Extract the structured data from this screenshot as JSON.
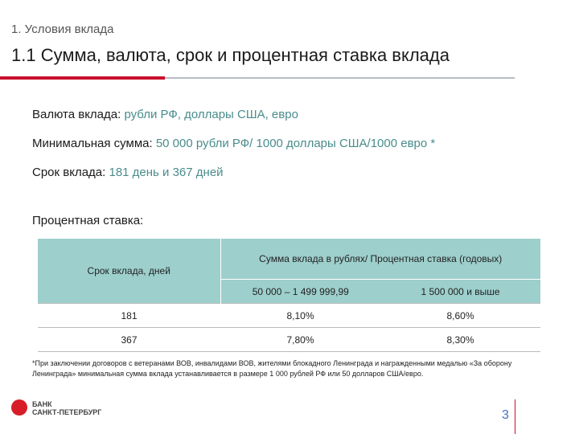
{
  "header": {
    "section": "1. Условия вклада",
    "title": "1.1 Сумма, валюта, срок и процентная ставка вклада"
  },
  "conditions": {
    "currency": {
      "label": "Валюта вклада:",
      "value": "рубли РФ, доллары США, евро"
    },
    "min_sum": {
      "label": "Минимальная сумма:",
      "value": "50 000 рубли РФ/ 1000 доллары США/1000 евро *"
    },
    "term": {
      "label": "Срок вклада:",
      "value": "181 день и 367 дней"
    },
    "rate_heading": "Процентная ставка:"
  },
  "table": {
    "col_term": "Срок вклада, дней",
    "col_group": "Сумма вклада в рублях/ Процентная ставка (годовых)",
    "sub_cols": [
      "50 000 – 1 499 999,99",
      "1 500 000 и выше"
    ],
    "rows": [
      {
        "term": "181",
        "rate1": "8,10%",
        "rate2": "8,60%"
      },
      {
        "term": "367",
        "rate1": "7,80%",
        "rate2": "8,30%"
      }
    ]
  },
  "footnote": "*При заключении договоров с ветеранами ВОВ, инвалидами ВОВ, жителями блокадного Ленинграда и награжденными медалью «За оборону Ленинграда» минимальная сумма вклада устанавливается в размере 1 000 рублей РФ или 50 долларов США/евро.",
  "logo": {
    "line1": "БАНК",
    "line2": "САНКТ-ПЕТЕРБУРГ"
  },
  "page_number": "3",
  "colors": {
    "accent_red": "#c8102e",
    "table_header": "#9dcfcc",
    "value_text": "#4a8c8c",
    "page_number": "#4472c4"
  }
}
